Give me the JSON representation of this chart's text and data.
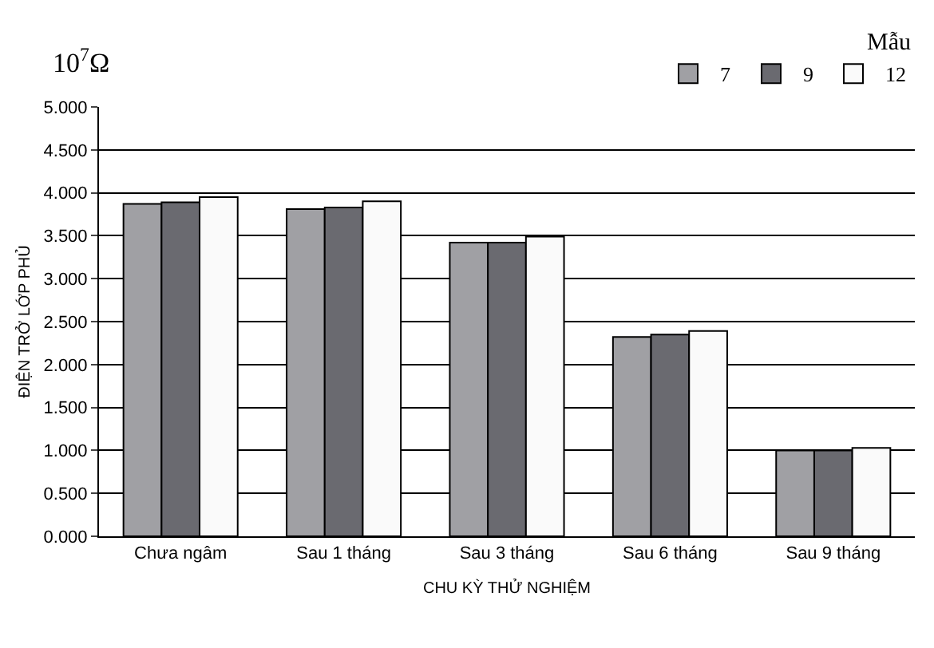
{
  "chart_data": {
    "type": "bar",
    "categories": [
      "Chưa ngâm",
      "Sau 1 tháng",
      "Sau 3 tháng",
      "Sau 6 tháng",
      "Sau 9 tháng"
    ],
    "series": [
      {
        "name": "7",
        "color": "#a0a0a4",
        "values": [
          3.87,
          3.81,
          3.42,
          2.32,
          1.0
        ]
      },
      {
        "name": "9",
        "color": "#6a6a70",
        "values": [
          3.89,
          3.83,
          3.42,
          2.35,
          1.0
        ]
      },
      {
        "name": "12",
        "color": "#fafafa",
        "values": [
          3.95,
          3.9,
          3.49,
          2.39,
          1.03
        ]
      }
    ],
    "ylim": [
      0,
      5
    ],
    "yticks": [
      {
        "value": 0,
        "label": "0.000"
      },
      {
        "value": 0.5,
        "label": "0.500"
      },
      {
        "value": 1,
        "label": "1.000"
      },
      {
        "value": 1.5,
        "label": "1.500"
      },
      {
        "value": 2,
        "label": "2.000"
      },
      {
        "value": 2.5,
        "label": "2.500"
      },
      {
        "value": 3,
        "label": "3.000"
      },
      {
        "value": 3.5,
        "label": "3.500"
      },
      {
        "value": 4,
        "label": "4.000"
      },
      {
        "value": 4.5,
        "label": "4.500"
      },
      {
        "value": 5,
        "label": "5.000"
      }
    ],
    "ylabel": "ĐIỆN TRỞ LỚP PHỦ",
    "xlabel": "CHU KỲ THỬ NGHIỆM",
    "legend_title": "Mẫu",
    "legend": "top right",
    "grid": "y",
    "annotations": [
      "10$^{7}$Ω"
    ]
  }
}
